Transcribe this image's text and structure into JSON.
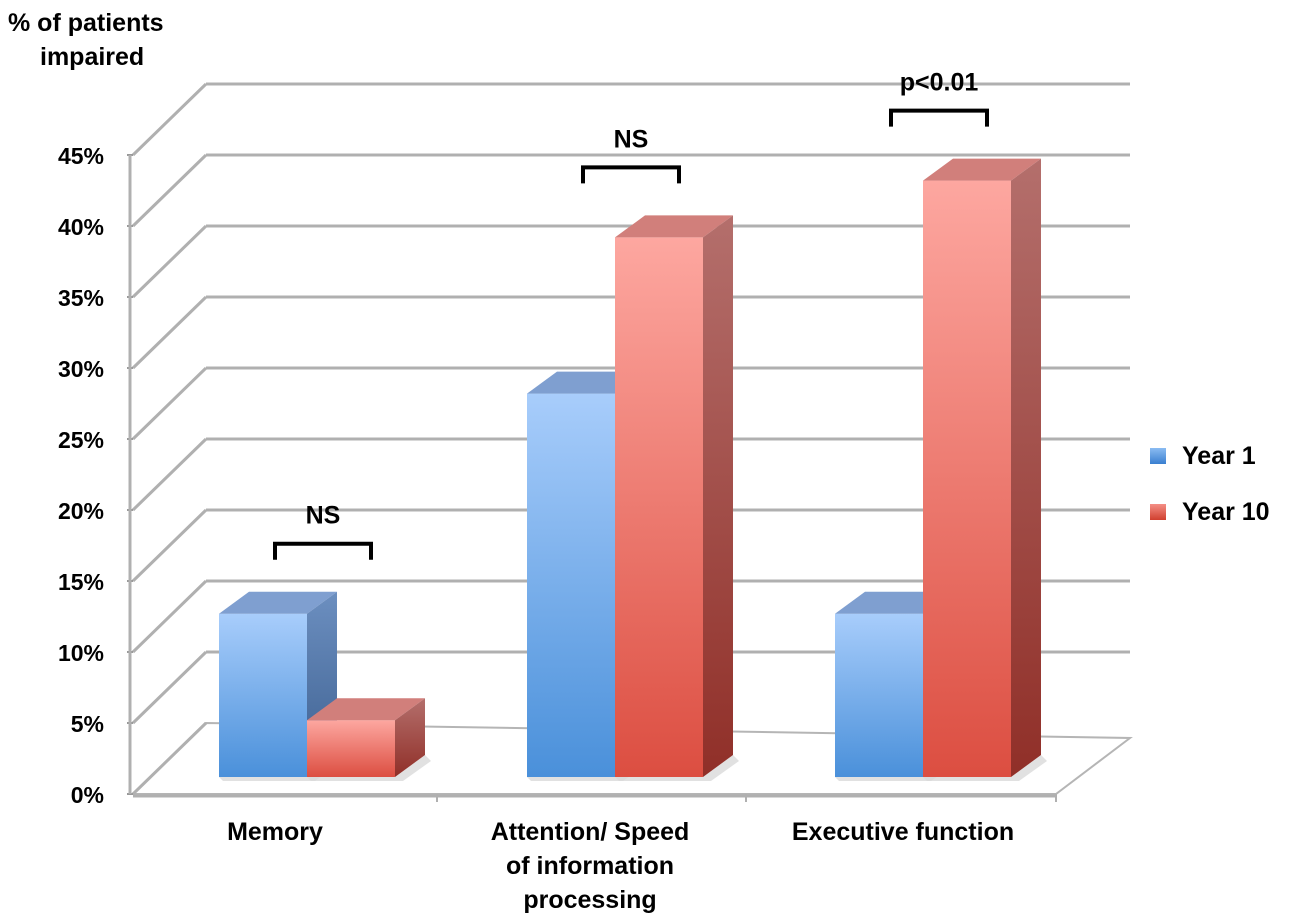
{
  "chart_data": {
    "type": "bar",
    "ylabel_line1": "% of patients",
    "ylabel_line2": "impaired",
    "ylim": [
      0,
      45
    ],
    "ytick_values": [
      0,
      5,
      10,
      15,
      20,
      25,
      30,
      35,
      40,
      45
    ],
    "ytick_labels": [
      "0%",
      "5%",
      "10%",
      "15%",
      "20%",
      "25%",
      "30%",
      "35%",
      "40%",
      "45%"
    ],
    "categories": [
      [
        "Memory"
      ],
      [
        "Attention/ Speed",
        "of information",
        "processing"
      ],
      [
        "Executive function"
      ]
    ],
    "series": [
      {
        "name": "Year 1",
        "values": [
          11.5,
          27,
          11.5
        ],
        "color": "#4a90e2"
      },
      {
        "name": "Year 10",
        "values": [
          4,
          38,
          42
        ],
        "color": "#e05548"
      }
    ],
    "annotations": [
      "NS",
      "NS",
      "p<0.01"
    ],
    "grid": true,
    "legend_position": "right",
    "style": "3d-clustered-column"
  }
}
